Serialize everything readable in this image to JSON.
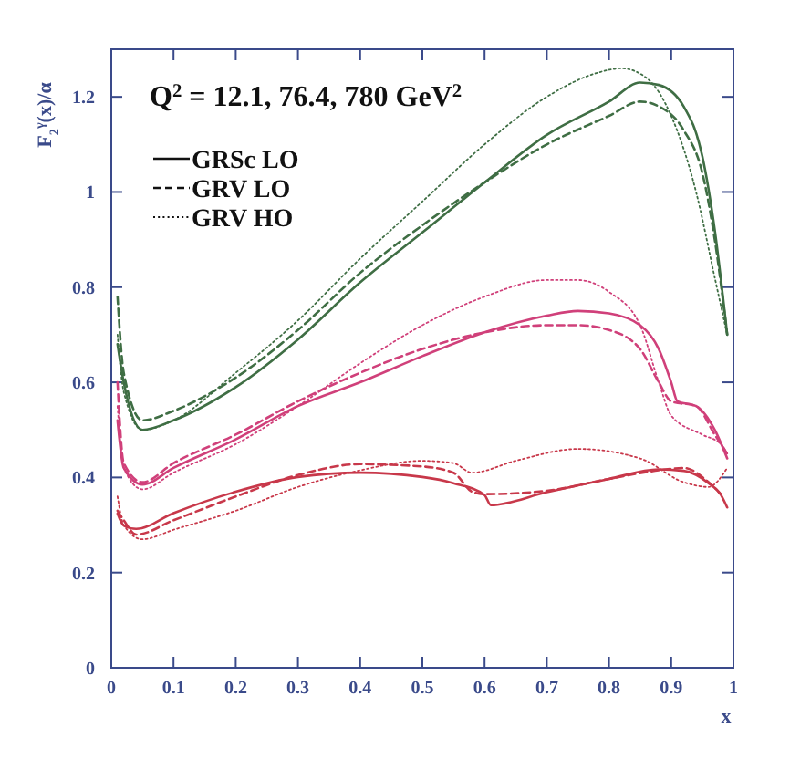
{
  "chart_data": {
    "type": "line",
    "title": "Q$^{2}$ = 12.1, 76.4, 780 GeV$^{2}$",
    "xlabel": "x",
    "ylabel": "F$_{2}$$^{γ}$(x)/α",
    "xlim": [
      0,
      1
    ],
    "ylim": [
      0,
      1.3
    ],
    "xticks": [
      {
        "value": 0,
        "label": "0"
      },
      {
        "value": 0.1,
        "label": "0.1"
      },
      {
        "value": 0.2,
        "label": "0.2"
      },
      {
        "value": 0.3,
        "label": "0.3"
      },
      {
        "value": 0.4,
        "label": "0.4"
      },
      {
        "value": 0.5,
        "label": "0.5"
      },
      {
        "value": 0.6,
        "label": "0.6"
      },
      {
        "value": 0.7,
        "label": "0.7"
      },
      {
        "value": 0.8,
        "label": "0.8"
      },
      {
        "value": 0.9,
        "label": "0.9"
      },
      {
        "value": 1,
        "label": "1"
      }
    ],
    "yticks": [
      {
        "value": 0,
        "label": "0"
      },
      {
        "value": 0.2,
        "label": "0.2"
      },
      {
        "value": 0.4,
        "label": "0.4"
      },
      {
        "value": 0.6,
        "label": "0.6"
      },
      {
        "value": 0.8,
        "label": "0.8"
      },
      {
        "value": 1,
        "label": "1"
      },
      {
        "value": 1.2,
        "label": "1.2"
      }
    ],
    "grid": false,
    "annotations": [
      "GRSc LO",
      "GRV LO",
      "GRV HO"
    ],
    "series": [
      {
        "line_style": "solid",
        "color": "#c8384a",
        "x": [
          0.01,
          0.02,
          0.04,
          0.1,
          0.2,
          0.3,
          0.4,
          0.5,
          0.55,
          0.6,
          0.61,
          0.7,
          0.8,
          0.88,
          0.92,
          0.96,
          0.98,
          0.99
        ],
        "values": [
          0.324,
          0.299,
          0.292,
          0.325,
          0.37,
          0.401,
          0.41,
          0.401,
          0.388,
          0.363,
          0.342,
          0.369,
          0.397,
          0.417,
          0.414,
          0.388,
          0.363,
          0.337
        ]
      },
      {
        "line_style": "dashed",
        "color": "#c8384a",
        "x": [
          0.01,
          0.02,
          0.04,
          0.1,
          0.2,
          0.3,
          0.4,
          0.5,
          0.55,
          0.58,
          0.6,
          0.7,
          0.8,
          0.88,
          0.92,
          0.96,
          0.98
        ],
        "values": [
          0.33,
          0.31,
          0.28,
          0.31,
          0.36,
          0.405,
          0.428,
          0.423,
          0.41,
          0.37,
          0.365,
          0.372,
          0.397,
          0.415,
          0.42,
          0.39,
          0.365
        ]
      },
      {
        "line_style": "dotted",
        "color": "#c8384a",
        "x": [
          0.01,
          0.02,
          0.05,
          0.1,
          0.2,
          0.3,
          0.4,
          0.5,
          0.55,
          0.58,
          0.65,
          0.75,
          0.85,
          0.92,
          0.96,
          0.99
        ],
        "values": [
          0.36,
          0.3,
          0.27,
          0.29,
          0.33,
          0.38,
          0.415,
          0.435,
          0.43,
          0.41,
          0.435,
          0.46,
          0.44,
          0.39,
          0.38,
          0.42
        ]
      },
      {
        "line_style": "solid",
        "color": "#d0407a",
        "x": [
          0.01,
          0.02,
          0.05,
          0.1,
          0.2,
          0.3,
          0.4,
          0.5,
          0.6,
          0.7,
          0.75,
          0.8,
          0.85,
          0.88,
          0.9,
          0.91,
          0.94,
          0.97,
          0.99
        ],
        "values": [
          0.52,
          0.42,
          0.385,
          0.42,
          0.48,
          0.55,
          0.6,
          0.655,
          0.705,
          0.74,
          0.75,
          0.745,
          0.72,
          0.67,
          0.6,
          0.56,
          0.55,
          0.5,
          0.44
        ]
      },
      {
        "line_style": "dashed",
        "color": "#d0407a",
        "x": [
          0.01,
          0.02,
          0.05,
          0.1,
          0.2,
          0.3,
          0.4,
          0.5,
          0.6,
          0.7,
          0.75,
          0.8,
          0.85,
          0.88,
          0.9,
          0.94,
          0.97,
          0.99
        ],
        "values": [
          0.6,
          0.43,
          0.39,
          0.43,
          0.49,
          0.56,
          0.62,
          0.67,
          0.705,
          0.72,
          0.72,
          0.71,
          0.67,
          0.6,
          0.56,
          0.55,
          0.49,
          0.45
        ]
      },
      {
        "line_style": "dotted",
        "color": "#d0407a",
        "x": [
          0.01,
          0.02,
          0.05,
          0.1,
          0.2,
          0.3,
          0.4,
          0.5,
          0.6,
          0.7,
          0.75,
          0.8,
          0.85,
          0.88,
          0.9,
          0.95,
          0.98,
          0.99
        ],
        "values": [
          0.55,
          0.42,
          0.375,
          0.41,
          0.47,
          0.55,
          0.64,
          0.72,
          0.78,
          0.815,
          0.815,
          0.79,
          0.72,
          0.6,
          0.53,
          0.49,
          0.47,
          0.45
        ]
      },
      {
        "line_style": "solid",
        "color": "#3f6e44",
        "x": [
          0.01,
          0.02,
          0.05,
          0.1,
          0.2,
          0.3,
          0.4,
          0.5,
          0.6,
          0.7,
          0.8,
          0.85,
          0.88,
          0.92,
          0.95,
          0.97,
          0.99
        ],
        "values": [
          0.68,
          0.6,
          0.5,
          0.52,
          0.59,
          0.69,
          0.81,
          0.915,
          1.02,
          1.12,
          1.19,
          1.23,
          1.225,
          1.18,
          1.075,
          0.92,
          0.7
        ]
      },
      {
        "line_style": "dashed",
        "color": "#3f6e44",
        "x": [
          0.01,
          0.02,
          0.05,
          0.1,
          0.2,
          0.3,
          0.4,
          0.5,
          0.6,
          0.7,
          0.8,
          0.85,
          0.88,
          0.92,
          0.95,
          0.97,
          0.99
        ],
        "values": [
          0.78,
          0.62,
          0.52,
          0.54,
          0.61,
          0.71,
          0.83,
          0.93,
          1.02,
          1.1,
          1.16,
          1.19,
          1.18,
          1.13,
          1.04,
          0.9,
          0.7
        ]
      },
      {
        "line_style": "dotted",
        "color": "#3f6e44",
        "x": [
          0.01,
          0.02,
          0.05,
          0.1,
          0.2,
          0.3,
          0.4,
          0.5,
          0.6,
          0.7,
          0.78,
          0.82,
          0.86,
          0.9,
          0.94,
          0.97,
          0.99
        ],
        "values": [
          0.7,
          0.58,
          0.5,
          0.52,
          0.62,
          0.73,
          0.86,
          0.98,
          1.1,
          1.2,
          1.25,
          1.26,
          1.24,
          1.16,
          1.0,
          0.82,
          0.7
        ]
      }
    ]
  }
}
